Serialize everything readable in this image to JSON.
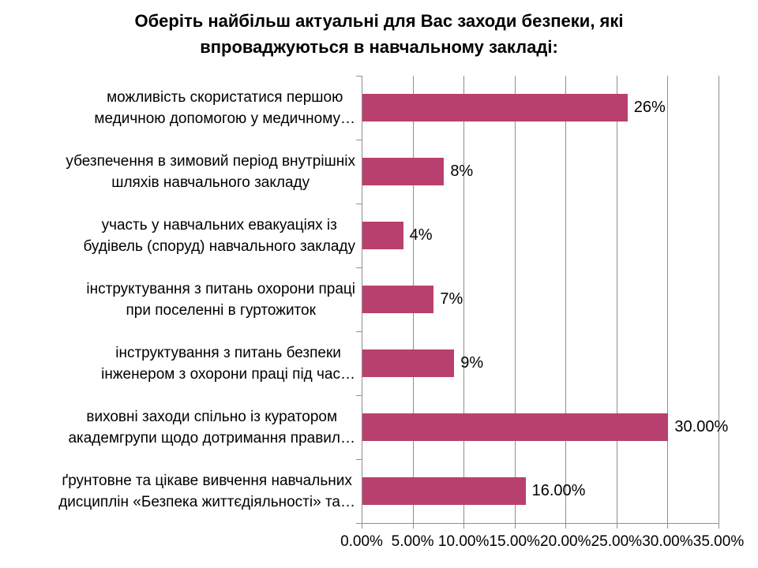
{
  "title": "Оберіть найбільш актуальні для Вас заходи безпеки, які впроваджуються в навчальному закладі:",
  "chart_data": {
    "type": "bar",
    "orientation": "horizontal",
    "title": "Оберіть найбільш актуальні для Вас заходи безпеки, які впроваджуються в навчальному закладі:",
    "categories": [
      "можливість скористатися першою\nмедичною допомогою у медичному…",
      "убезпечення в зимовий період внутрішніх\nшляхів навчального закладу",
      "участь у навчальних евакуаціях із\nбудівель (споруд) навчального закладу",
      "інструктування з питань охорони праці\nпри поселенні в гуртожиток",
      "інструктування з питань безпеки\nінженером з охорони праці під час…",
      "виховні заходи спільно із куратором\nакадемгрупи щодо дотримання правил…",
      "ґрунтовне та цікаве вивчення навчальних\nдисциплін «Безпека життєдіяльності» та…"
    ],
    "values": [
      26,
      8,
      4,
      7,
      9,
      30,
      16
    ],
    "value_labels": [
      "26%",
      "8%",
      "4%",
      "7%",
      "9%",
      "30.00%",
      "16.00%"
    ],
    "x_ticks": [
      "0.00%",
      "5.00%",
      "10.00%",
      "15.00%",
      "20.00%",
      "25.00%",
      "30.00%",
      "35.00%"
    ],
    "x_tick_values": [
      0,
      5,
      10,
      15,
      20,
      25,
      30,
      35
    ],
    "xlim": [
      0,
      35
    ],
    "xlabel": "",
    "ylabel": "",
    "grid": true,
    "legend": "none",
    "bar_color": "#b8406e",
    "gridline_color": "#8f8f8f",
    "text_color": "#000000"
  }
}
